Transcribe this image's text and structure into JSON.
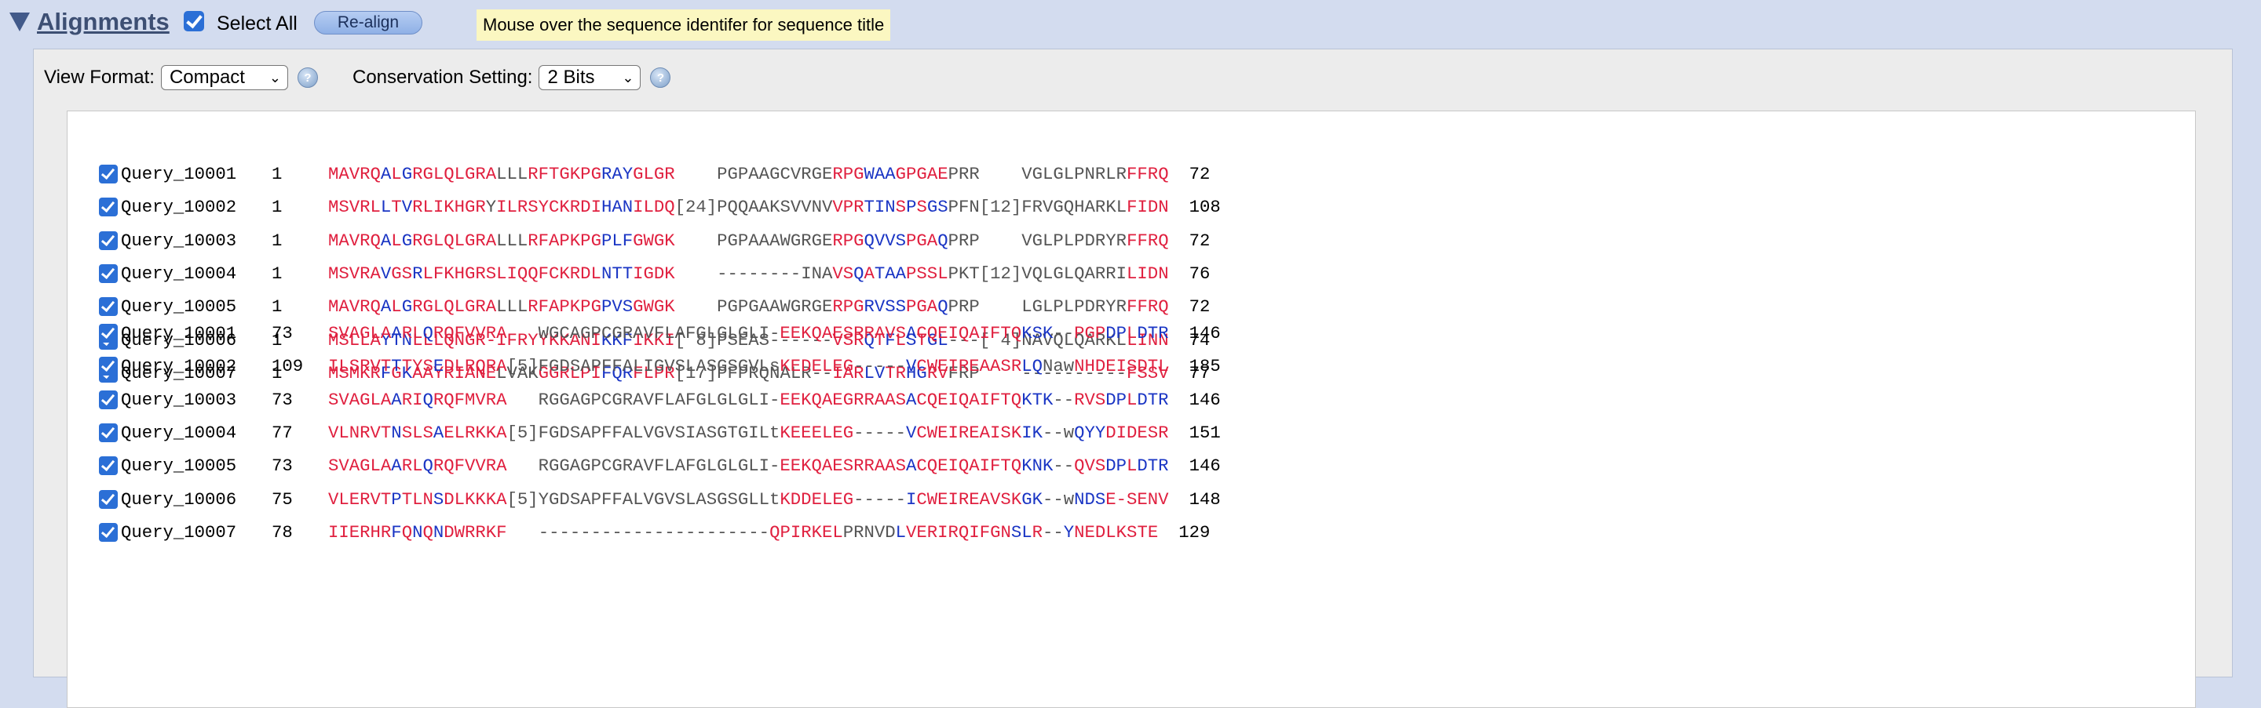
{
  "header": {
    "title": "Alignments",
    "select_all_label": "Select All",
    "realign_label": "Re-align",
    "tip": "Mouse over the sequence identifer for sequence title"
  },
  "options": {
    "view_format_label": "View Format:",
    "view_format_value": "Compact",
    "conservation_label": "Conservation Setting:",
    "conservation_value": "2 Bits"
  },
  "blocks": [
    {
      "rows": [
        {
          "name": "Query_10001",
          "start": "1",
          "end": "72",
          "segs": [
            [
              "r",
              "MAVRQ"
            ],
            [
              "b",
              "A"
            ],
            [
              "r",
              "L"
            ],
            [
              "b",
              "G"
            ],
            [
              "r",
              "RGLQLGRA"
            ],
            [
              "g",
              "LLL"
            ],
            [
              "r",
              "RFTGKPG"
            ],
            [
              "b",
              "RAY"
            ],
            [
              "r",
              "GLGR"
            ],
            [
              "g",
              "    PGPAAGCVRGE"
            ],
            [
              "r",
              "RPG"
            ],
            [
              "b",
              "WAA"
            ],
            [
              "r",
              "GPGAE"
            ],
            [
              "g",
              "PRR    VGLGLPNRLR"
            ],
            [
              "r",
              "FFRQ"
            ]
          ]
        },
        {
          "name": "Query_10002",
          "start": "1",
          "end": "108",
          "segs": [
            [
              "r",
              "MSVRL"
            ],
            [
              "b",
              "L"
            ],
            [
              "r",
              "T"
            ],
            [
              "b",
              "V"
            ],
            [
              "r",
              "RLIKHGR"
            ],
            [
              "g",
              "Y"
            ],
            [
              "r",
              "ILRSYCKRDI"
            ],
            [
              "b",
              "HAN"
            ],
            [
              "r",
              "ILDQ"
            ],
            [
              "g",
              "[24]PQQAAKSVVNV"
            ],
            [
              "r",
              "VPR"
            ],
            [
              "b",
              "TIN"
            ],
            [
              "r",
              "S"
            ],
            [
              "b",
              "P"
            ],
            [
              "r",
              "S"
            ],
            [
              "b",
              "GS"
            ],
            [
              "g",
              "PFN[12]FRVGQHARKL"
            ],
            [
              "r",
              "FIDN"
            ]
          ]
        },
        {
          "name": "Query_10003",
          "start": "1",
          "end": "72",
          "segs": [
            [
              "r",
              "MAVRQ"
            ],
            [
              "b",
              "A"
            ],
            [
              "r",
              "L"
            ],
            [
              "b",
              "G"
            ],
            [
              "r",
              "RGLQLGRA"
            ],
            [
              "g",
              "LLL"
            ],
            [
              "r",
              "RFAPKPG"
            ],
            [
              "b",
              "PLF"
            ],
            [
              "r",
              "GWGK"
            ],
            [
              "g",
              "    PGPAAAWGRGE"
            ],
            [
              "r",
              "RPG"
            ],
            [
              "b",
              "QVVS"
            ],
            [
              "r",
              "PGA"
            ],
            [
              "b",
              "Q"
            ],
            [
              "g",
              "PRP    VGLPLPDRYR"
            ],
            [
              "r",
              "FFRQ"
            ]
          ]
        },
        {
          "name": "Query_10004",
          "start": "1",
          "end": "76",
          "segs": [
            [
              "r",
              "MSVRA"
            ],
            [
              "b",
              "V"
            ],
            [
              "r",
              "GS"
            ],
            [
              "b",
              "R"
            ],
            [
              "r",
              "LFKHGRS"
            ],
            [
              "r",
              "LIQQFCKRDL"
            ],
            [
              "b",
              "NTT"
            ],
            [
              "r",
              "IGDK"
            ],
            [
              "g",
              "    --------INA"
            ],
            [
              "r",
              "VS"
            ],
            [
              "b",
              "Q"
            ],
            [
              "r",
              "A"
            ],
            [
              "b",
              "TAA"
            ],
            [
              "r",
              "PSSL"
            ],
            [
              "g",
              "PKT[12]VQLGLQARRI"
            ],
            [
              "r",
              "LIDN"
            ]
          ]
        },
        {
          "name": "Query_10005",
          "start": "1",
          "end": "72",
          "segs": [
            [
              "r",
              "MAVRQ"
            ],
            [
              "b",
              "A"
            ],
            [
              "r",
              "L"
            ],
            [
              "b",
              "G"
            ],
            [
              "r",
              "RGLQLGRA"
            ],
            [
              "g",
              "LLL"
            ],
            [
              "r",
              "RFAPKPG"
            ],
            [
              "b",
              "PVS"
            ],
            [
              "r",
              "GWGK"
            ],
            [
              "g",
              "    PGPGAAWGRGE"
            ],
            [
              "r",
              "RPG"
            ],
            [
              "b",
              "RVSS"
            ],
            [
              "r",
              "PGA"
            ],
            [
              "b",
              "Q"
            ],
            [
              "g",
              "PRP    LGLPLPDRYR"
            ],
            [
              "r",
              "FFRQ"
            ]
          ]
        },
        {
          "name": "Query_10006",
          "start": "1",
          "end": "74",
          "segs": [
            [
              "r",
              "MSLLA"
            ],
            [
              "b",
              "YTN"
            ],
            [
              "r",
              "LLLQNGR-IFRYYKKANI"
            ],
            [
              "b",
              "KKF"
            ],
            [
              "r",
              "IKKI"
            ],
            [
              "g",
              "[ 8]PSEAS------"
            ],
            [
              "r",
              "VSR"
            ],
            [
              "b",
              "Q"
            ],
            [
              "r",
              "T"
            ],
            [
              "b",
              "F"
            ],
            [
              "r",
              "L"
            ],
            [
              "b",
              "S"
            ],
            [
              "r",
              "T"
            ],
            [
              "b",
              "GL"
            ],
            [
              "g",
              "---[ 4]NAVQLQARKL"
            ],
            [
              "r",
              "LINN"
            ]
          ]
        },
        {
          "name": "Query_10007",
          "start": "1",
          "end": "77",
          "segs": [
            [
              "r",
              "MSMKR"
            ],
            [
              "b",
              "F"
            ],
            [
              "r",
              "G"
            ],
            [
              "b",
              "K"
            ],
            [
              "r",
              "AAYRIANE"
            ],
            [
              "g",
              "LVAK"
            ],
            [
              "r",
              "GGRLPI"
            ],
            [
              "b",
              "FQR"
            ],
            [
              "r",
              "FLPR"
            ],
            [
              "g",
              "[17]PFPRQNALR--"
            ],
            [
              "r",
              "IAR"
            ],
            [
              "b",
              "LV"
            ],
            [
              "r",
              "TR"
            ],
            [
              "b",
              "HG"
            ],
            [
              "r",
              "RV"
            ],
            [
              "g",
              "FRP    ----------"
            ],
            [
              "r",
              "FSSV"
            ]
          ]
        }
      ]
    },
    {
      "rows": [
        {
          "name": "Query_10001",
          "start": "73",
          "end": "146",
          "segs": [
            [
              "r",
              "SVAGLA"
            ],
            [
              "b",
              "A"
            ],
            [
              "r",
              "RL"
            ],
            [
              "b",
              "Q"
            ],
            [
              "r",
              "RQFVVRA"
            ],
            [
              "g",
              "   WGCAGPCGRAVFLAFGLGLGLI-"
            ],
            [
              "r",
              "EEKQAESRRAVS"
            ],
            [
              "b",
              "A"
            ],
            [
              "r",
              "CQEIQAIFTQ"
            ],
            [
              "b",
              "KSK"
            ],
            [
              "g",
              "--"
            ],
            [
              "r",
              "PGP"
            ],
            [
              "b",
              "DP"
            ],
            [
              "r",
              "L"
            ],
            [
              "b",
              "DTR"
            ]
          ]
        },
        {
          "name": "Query_10002",
          "start": "109",
          "end": "185",
          "segs": [
            [
              "r",
              "ILSRVT"
            ],
            [
              "b",
              "T"
            ],
            [
              "r",
              "TYS"
            ],
            [
              "b",
              "E"
            ],
            [
              "r",
              "DLRQRA"
            ],
            [
              "g",
              "[5]FGDSAPFFALIGVSLASGSGVLs"
            ],
            [
              "r",
              "KEDELEG"
            ],
            [
              "g",
              "-----"
            ],
            [
              "b",
              "V"
            ],
            [
              "r",
              "CWEIREAASR"
            ],
            [
              "b",
              "LQ"
            ],
            [
              "g",
              "Naw"
            ],
            [
              "r",
              "NHDEISDTL"
            ]
          ]
        },
        {
          "name": "Query_10003",
          "start": "73",
          "end": "146",
          "segs": [
            [
              "r",
              "SVAGLA"
            ],
            [
              "b",
              "A"
            ],
            [
              "r",
              "RI"
            ],
            [
              "b",
              "Q"
            ],
            [
              "r",
              "RQFMVRA"
            ],
            [
              "g",
              "   RGGAGPCGRAVFLAFGLGLGLI-"
            ],
            [
              "r",
              "EEKQAEGRRAAS"
            ],
            [
              "b",
              "A"
            ],
            [
              "r",
              "CQEIQAIFTQ"
            ],
            [
              "b",
              "KTK"
            ],
            [
              "g",
              "--"
            ],
            [
              "r",
              "RVS"
            ],
            [
              "b",
              "DP"
            ],
            [
              "r",
              "L"
            ],
            [
              "b",
              "DTR"
            ]
          ]
        },
        {
          "name": "Query_10004",
          "start": "77",
          "end": "151",
          "segs": [
            [
              "r",
              "VLNRVT"
            ],
            [
              "b",
              "N"
            ],
            [
              "r",
              "SLS"
            ],
            [
              "b",
              "A"
            ],
            [
              "r",
              "ELRKKA"
            ],
            [
              "g",
              "[5]FGDSAPFFALVGVSIASGTGILt"
            ],
            [
              "r",
              "KEEELEG"
            ],
            [
              "g",
              "-----"
            ],
            [
              "b",
              "V"
            ],
            [
              "r",
              "CWEIREAISK"
            ],
            [
              "b",
              "IK"
            ],
            [
              "g",
              "--w"
            ],
            [
              "b",
              "QYY"
            ],
            [
              "r",
              "DIDESR"
            ]
          ]
        },
        {
          "name": "Query_10005",
          "start": "73",
          "end": "146",
          "segs": [
            [
              "r",
              "SVAGLA"
            ],
            [
              "b",
              "A"
            ],
            [
              "r",
              "RL"
            ],
            [
              "b",
              "Q"
            ],
            [
              "r",
              "RQFVVRA"
            ],
            [
              "g",
              "   RGGAGPCGRAVFLAFGLGLGLI-"
            ],
            [
              "r",
              "EEKQAESRRAAS"
            ],
            [
              "b",
              "A"
            ],
            [
              "r",
              "CQEIQAIFTQ"
            ],
            [
              "b",
              "KNK"
            ],
            [
              "g",
              "--"
            ],
            [
              "r",
              "QVS"
            ],
            [
              "b",
              "DP"
            ],
            [
              "r",
              "L"
            ],
            [
              "b",
              "DTR"
            ]
          ]
        },
        {
          "name": "Query_10006",
          "start": "75",
          "end": "148",
          "segs": [
            [
              "r",
              "VLERVT"
            ],
            [
              "b",
              "P"
            ],
            [
              "r",
              "TLN"
            ],
            [
              "b",
              "S"
            ],
            [
              "r",
              "DLKKKA"
            ],
            [
              "g",
              "[5]YGDSAPFFALVGVSLASGSGLLt"
            ],
            [
              "r",
              "KDDELEG"
            ],
            [
              "g",
              "-----"
            ],
            [
              "b",
              "I"
            ],
            [
              "r",
              "CWEIREAVSK"
            ],
            [
              "b",
              "GK"
            ],
            [
              "g",
              "--w"
            ],
            [
              "b",
              "NDS"
            ],
            [
              "r",
              "E-SENV"
            ]
          ]
        },
        {
          "name": "Query_10007",
          "start": "78",
          "end": "129",
          "segs": [
            [
              "r",
              "IIERHR"
            ],
            [
              "b",
              "F"
            ],
            [
              "r",
              "Q"
            ],
            [
              "b",
              "N"
            ],
            [
              "r",
              "Q"
            ],
            [
              "b",
              "N"
            ],
            [
              "r",
              "DWRRKF"
            ],
            [
              "g",
              "   ----------------------"
            ],
            [
              "r",
              "QPIRKEL"
            ],
            [
              "g",
              "PRNVD"
            ],
            [
              "b",
              "L"
            ],
            [
              "r",
              "VERIRQIFGN"
            ],
            [
              "b",
              "SL"
            ],
            [
              "r",
              "R"
            ],
            [
              "g",
              "--"
            ],
            [
              "b",
              "Y"
            ],
            [
              "r",
              "NEDLKSTE"
            ]
          ]
        }
      ]
    }
  ],
  "colors": {
    "conserved_high": "#e0203f",
    "conserved_mid": "#1a35c4",
    "unconserved": "#555555",
    "background": "#d3dcef"
  }
}
